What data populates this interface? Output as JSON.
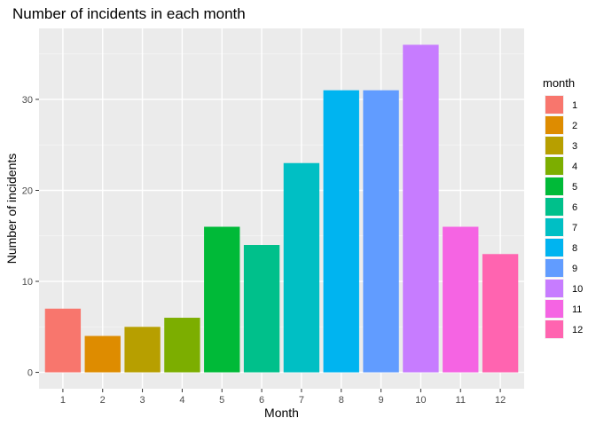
{
  "chart_data": {
    "type": "bar",
    "title": "Number of incidents in each month",
    "xlabel": "Month",
    "ylabel": "Number of incidents",
    "categories": [
      "1",
      "2",
      "3",
      "4",
      "5",
      "6",
      "7",
      "8",
      "9",
      "10",
      "11",
      "12"
    ],
    "values": [
      7,
      4,
      5,
      6,
      16,
      14,
      23,
      31,
      31,
      36,
      16,
      13
    ],
    "colors": [
      "#F8766D",
      "#DE8C00",
      "#B79F00",
      "#7CAE00",
      "#00BA38",
      "#00C08B",
      "#00BFC4",
      "#00B4F0",
      "#619CFF",
      "#C77CFF",
      "#F564E3",
      "#FF64B0"
    ],
    "y_ticks": [
      0,
      10,
      20,
      30
    ],
    "ylim": [
      0,
      37.8
    ],
    "grid": true,
    "legend": {
      "title": "month",
      "placement": "right",
      "entries": [
        "1",
        "2",
        "3",
        "4",
        "5",
        "6",
        "7",
        "8",
        "9",
        "10",
        "11",
        "12"
      ]
    }
  }
}
